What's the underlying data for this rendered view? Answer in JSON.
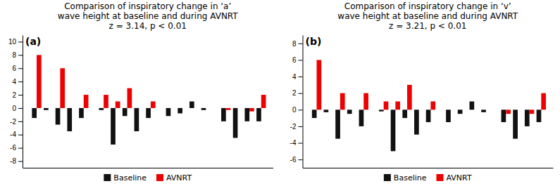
{
  "chart_data": [
    {
      "type": "bar",
      "title": "Comparison of inspiratory change in ‘a’\nwave height at baseline and during AVNRT\nz = 3.14, p < 0.01",
      "annotations": [
        "(a)"
      ],
      "categories": [
        null,
        null,
        null,
        null,
        null,
        null,
        null,
        null,
        null,
        null,
        null,
        null,
        null,
        null,
        null,
        null,
        null,
        null
      ],
      "series": [
        {
          "name": "Baseline",
          "color": "#111111",
          "values": [
            -1.5,
            -0.3,
            -2.5,
            -3.5,
            -1.5,
            -0.3,
            -5.5,
            -1.2,
            -3.5,
            -1.5,
            -1.2,
            -0.8,
            1.0,
            -0.3,
            -2.0,
            -4.5,
            -2.0,
            -2.0
          ]
        },
        {
          "name": "AVNRT",
          "color": "#ee0000",
          "values": [
            8.0,
            0.0,
            6.0,
            0.0,
            2.0,
            2.0,
            1.0,
            3.0,
            0.0,
            1.0,
            0.0,
            0.0,
            0.0,
            0.0,
            -0.3,
            0.0,
            -0.5,
            2.0
          ]
        }
      ],
      "ylim": [
        -9,
        11
      ],
      "yticks": [
        -8,
        -6,
        -4,
        -2,
        0,
        2,
        4,
        6,
        8,
        10
      ],
      "grid": false,
      "legend": "lower center",
      "tick_labels": "y"
    },
    {
      "type": "bar",
      "title": "Comparison of inspiratory change in ‘v’\nwave height at baseline and during AVNRT\nz = 3.21, p < 0.01",
      "annotations": [
        "(b)"
      ],
      "categories": [
        null,
        null,
        null,
        null,
        null,
        null,
        null,
        null,
        null,
        null,
        null,
        null,
        null,
        null,
        null,
        null,
        null,
        null
      ],
      "series": [
        {
          "name": "Baseline",
          "color": "#111111",
          "values": [
            -1.0,
            -0.3,
            -3.5,
            -0.5,
            -2.0,
            -0.2,
            -5.0,
            -1.0,
            -3.0,
            -1.5,
            -1.5,
            -0.5,
            1.0,
            -0.3,
            -1.5,
            -3.5,
            -2.0,
            -1.5
          ]
        },
        {
          "name": "AVNRT",
          "color": "#ee0000",
          "values": [
            6.0,
            0.0,
            2.0,
            0.0,
            2.0,
            1.0,
            1.0,
            3.0,
            0.0,
            1.0,
            0.0,
            0.0,
            0.0,
            0.0,
            -0.5,
            0.0,
            -0.5,
            2.0
          ]
        }
      ],
      "ylim": [
        -7,
        9
      ],
      "yticks": [
        -6,
        -4,
        -2,
        0,
        2,
        4,
        6,
        8
      ],
      "grid": false,
      "legend": "lower center",
      "tick_labels": "y"
    }
  ]
}
